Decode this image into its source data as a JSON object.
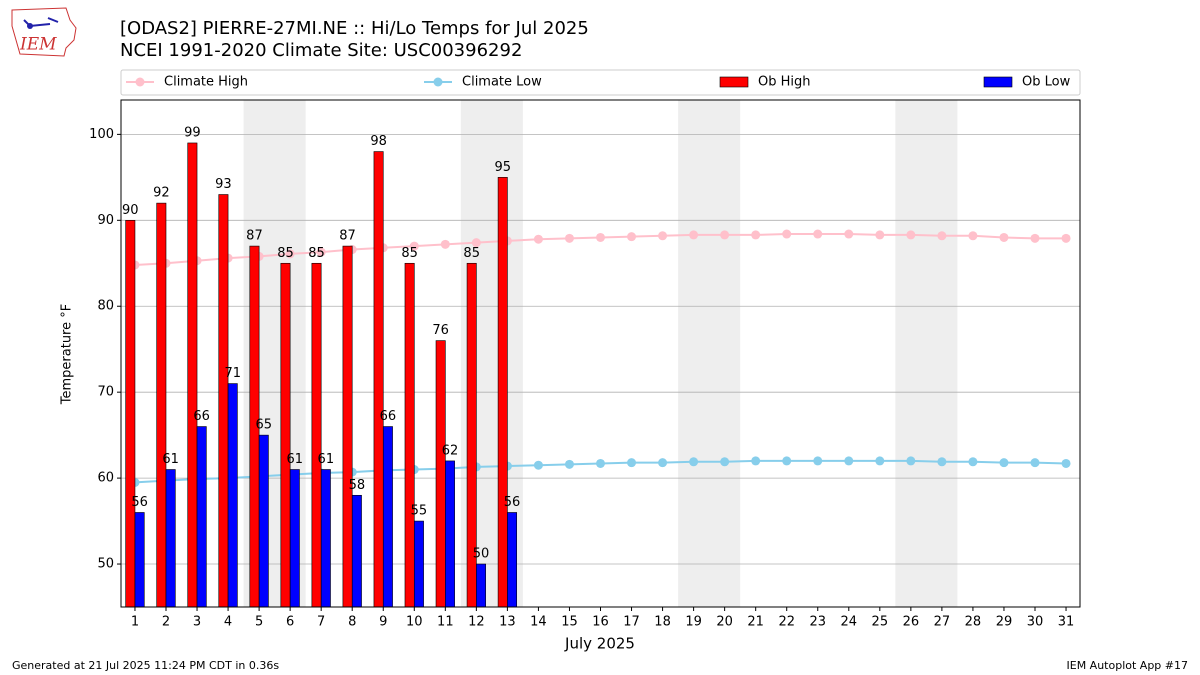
{
  "logo_text": "IEM",
  "footer_left": "Generated at 21 Jul 2025 11:24 PM CDT in 0.36s",
  "footer_right": "IEM Autoplot App #17",
  "chart_data": {
    "type": "bar",
    "title": "[ODAS2] PIERRE-27MI.NE :: Hi/Lo Temps for Jul 2025",
    "subtitle": "NCEI 1991-2020 Climate Site: USC00396292",
    "xlabel": "July 2025",
    "ylabel": "Temperature °F",
    "x": [
      1,
      2,
      3,
      4,
      5,
      6,
      7,
      8,
      9,
      10,
      11,
      12,
      13,
      14,
      15,
      16,
      17,
      18,
      19,
      20,
      21,
      22,
      23,
      24,
      25,
      26,
      27,
      28,
      29,
      30,
      31
    ],
    "xlim": [
      0.55,
      31.45
    ],
    "xticks": [
      1,
      2,
      3,
      4,
      5,
      6,
      7,
      8,
      9,
      10,
      11,
      12,
      13,
      14,
      15,
      16,
      17,
      18,
      19,
      20,
      21,
      22,
      23,
      24,
      25,
      26,
      27,
      28,
      29,
      30,
      31
    ],
    "ylim": [
      45,
      104
    ],
    "yticks": [
      50,
      60,
      70,
      80,
      90,
      100
    ],
    "grid": true,
    "shaded_spans": [
      [
        4.5,
        6.5
      ],
      [
        11.5,
        13.5
      ],
      [
        18.5,
        20.5
      ],
      [
        25.5,
        27.5
      ]
    ],
    "shade_color": "#eeeeee",
    "series": [
      {
        "name": "Climate High",
        "type": "line",
        "color": "#ffc0cb",
        "values": [
          84.8,
          85.0,
          85.3,
          85.6,
          85.8,
          86.1,
          86.3,
          86.6,
          86.8,
          87.0,
          87.2,
          87.4,
          87.6,
          87.8,
          87.9,
          88.0,
          88.1,
          88.2,
          88.3,
          88.3,
          88.3,
          88.4,
          88.4,
          88.4,
          88.3,
          88.3,
          88.2,
          88.2,
          88.0,
          87.9,
          87.9
        ]
      },
      {
        "name": "Climate Low",
        "type": "line",
        "color": "#87ceeb",
        "values": [
          59.5,
          59.7,
          59.9,
          60.0,
          60.2,
          60.4,
          60.6,
          60.7,
          60.9,
          61.0,
          61.1,
          61.3,
          61.4,
          61.5,
          61.6,
          61.7,
          61.8,
          61.8,
          61.9,
          61.9,
          62.0,
          62.0,
          62.0,
          62.0,
          62.0,
          62.0,
          61.9,
          61.9,
          61.8,
          61.8,
          61.7
        ]
      },
      {
        "name": "Ob High",
        "type": "bar",
        "color": "#ff0000",
        "offset": -1,
        "values": [
          90,
          92,
          99,
          93,
          87,
          85,
          85,
          87,
          98,
          85,
          76,
          85,
          95,
          null,
          null,
          null,
          null,
          null,
          null,
          null,
          null,
          null,
          null,
          null,
          null,
          null,
          null,
          null,
          null,
          null,
          null
        ]
      },
      {
        "name": "Ob Low",
        "type": "bar",
        "color": "#0000ff",
        "offset": 1,
        "values": [
          56,
          61,
          66,
          71,
          65,
          61,
          61,
          58,
          66,
          55,
          62,
          50,
          56,
          null,
          null,
          null,
          null,
          null,
          null,
          null,
          null,
          null,
          null,
          null,
          null,
          null,
          null,
          null,
          null,
          null,
          null
        ]
      }
    ]
  }
}
